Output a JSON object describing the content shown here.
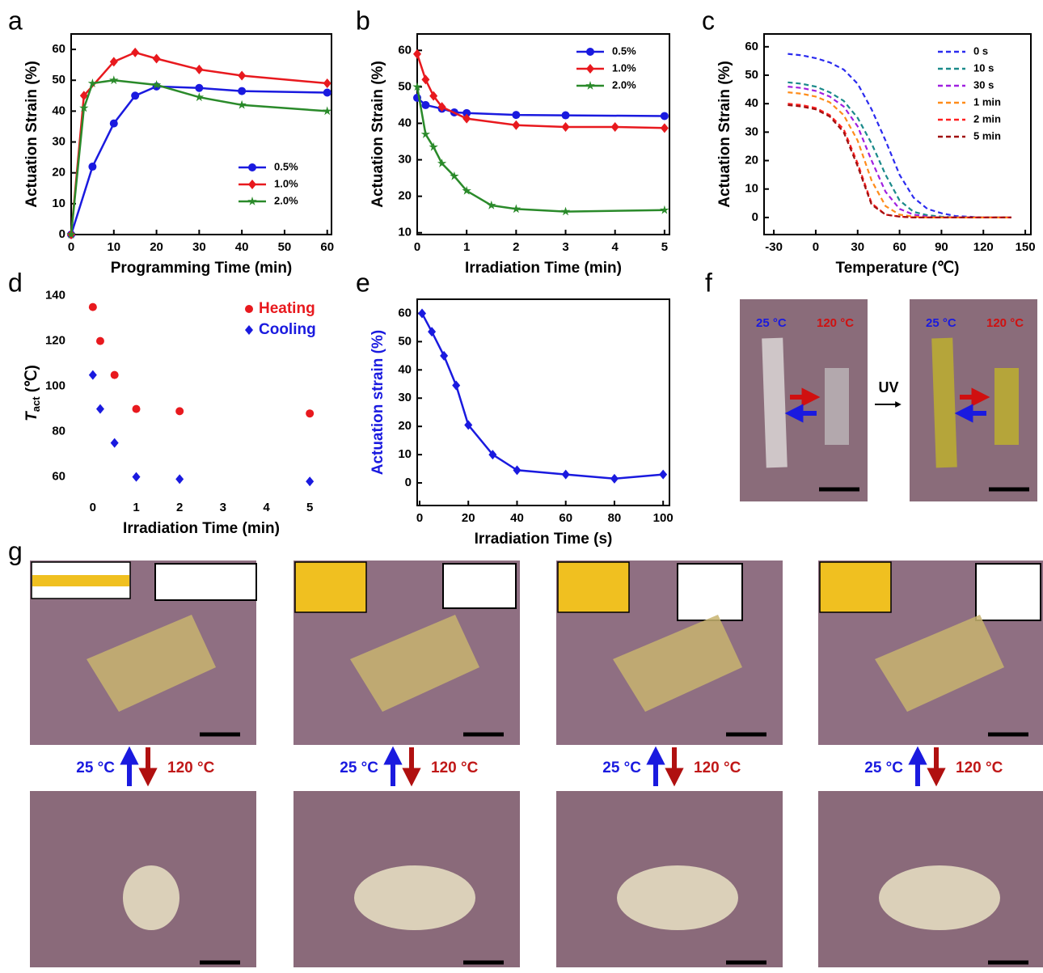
{
  "panel_labels": [
    "a",
    "b",
    "c",
    "d",
    "e",
    "f",
    "g"
  ],
  "chart_data": [
    {
      "type": "line",
      "frame": true,
      "x_label": "Programming Time (min)",
      "y_label": "Actuation Strain (%)",
      "xlim": [
        0,
        61
      ],
      "ylim": [
        0,
        65
      ],
      "xticks": [
        0,
        10,
        20,
        30,
        40,
        50,
        60
      ],
      "yticks": [
        0,
        10,
        20,
        30,
        40,
        50,
        60
      ],
      "legend": "lower right",
      "series": [
        {
          "name": "0.5%",
          "color": "#1a1adf",
          "marker": "circle",
          "x": [
            0,
            5,
            10,
            15,
            20,
            30,
            40,
            60
          ],
          "values": [
            0,
            22,
            36,
            45,
            48,
            47.5,
            46.5,
            46
          ]
        },
        {
          "name": "1.0%",
          "color": "#e8191e",
          "marker": "diamond",
          "x": [
            0,
            3,
            10,
            15,
            20,
            30,
            40,
            60
          ],
          "values": [
            0,
            45,
            56,
            59,
            57,
            53.5,
            51.5,
            49
          ]
        },
        {
          "name": "2.0%",
          "color": "#2a8a2a",
          "marker": "star",
          "x": [
            0,
            3,
            5,
            10,
            20,
            30,
            40,
            60
          ],
          "values": [
            0,
            41,
            49,
            50,
            48.5,
            44.5,
            42,
            40
          ]
        }
      ]
    },
    {
      "type": "line",
      "frame": true,
      "x_label": "Irradiation Time (min)",
      "y_label": "Actuation Strain (%)",
      "xlim": [
        0,
        5.1
      ],
      "ylim": [
        9.5,
        64.5
      ],
      "xticks": [
        0,
        1,
        2,
        3,
        4,
        5
      ],
      "yticks": [
        10,
        20,
        30,
        40,
        50,
        60
      ],
      "legend": "upper right",
      "series": [
        {
          "name": "0.5%",
          "color": "#1a1adf",
          "marker": "circle",
          "x": [
            0,
            0.17,
            0.5,
            0.75,
            1,
            2,
            3,
            5
          ],
          "values": [
            47,
            45,
            44,
            43,
            42.8,
            42.3,
            42.2,
            42
          ]
        },
        {
          "name": "1.0%",
          "color": "#e8191e",
          "marker": "diamond",
          "x": [
            0,
            0.17,
            0.33,
            0.5,
            1,
            2,
            3,
            4,
            5
          ],
          "values": [
            59,
            52,
            47.5,
            44.5,
            41.3,
            39.5,
            39,
            39,
            38.7
          ]
        },
        {
          "name": "2.0%",
          "color": "#2a8a2a",
          "marker": "star",
          "x": [
            0,
            0.17,
            0.33,
            0.5,
            0.75,
            1,
            1.5,
            2,
            3,
            5
          ],
          "values": [
            50,
            37,
            33.5,
            29,
            25.5,
            21.5,
            17.5,
            16.5,
            15.8,
            16.2
          ]
        }
      ]
    },
    {
      "type": "line",
      "frame": true,
      "dashed": true,
      "x_label": "Temperature (℃)",
      "y_label": "Actuation Strain (%)",
      "xlim": [
        -37,
        154
      ],
      "ylim": [
        -6,
        64.5
      ],
      "xticks": [
        -30,
        0,
        30,
        60,
        90,
        120,
        150
      ],
      "yticks": [
        0,
        10,
        20,
        30,
        40,
        50,
        60
      ],
      "legend": "upper right",
      "x": [
        -20,
        -10,
        0,
        10,
        20,
        30,
        40,
        50,
        60,
        70,
        80,
        90,
        100,
        120,
        140
      ],
      "series": [
        {
          "name": "0 s",
          "color": "#2b2bef",
          "values": [
            57.5,
            57,
            56,
            54.5,
            52,
            47,
            38,
            27,
            15,
            7,
            3,
            1.5,
            0.5,
            0,
            0
          ]
        },
        {
          "name": "10 s",
          "color": "#1a8a8a",
          "values": [
            47.5,
            47,
            46,
            44,
            41,
            35,
            26,
            15,
            6,
            2,
            0.8,
            0.3,
            0,
            0,
            0
          ]
        },
        {
          "name": "30 s",
          "color": "#a020e0",
          "values": [
            46,
            45.5,
            44.5,
            42.5,
            39,
            32,
            20,
            9,
            3,
            1,
            0.3,
            0,
            0,
            0,
            0
          ]
        },
        {
          "name": "1 min",
          "color": "#ff8c1a",
          "values": [
            44,
            43.5,
            42.5,
            40.5,
            36,
            27,
            13,
            4,
            1,
            0.3,
            0,
            0,
            0,
            0,
            0
          ]
        },
        {
          "name": "2 min",
          "color": "#ff2020",
          "values": [
            40,
            39.5,
            38.5,
            36,
            31,
            19,
            5,
            1,
            0.3,
            0,
            0,
            0,
            0,
            0,
            0
          ]
        },
        {
          "name": "5 min",
          "color": "#a01010",
          "values": [
            39.5,
            39,
            38,
            35.5,
            30,
            18,
            4.5,
            1,
            0.3,
            0,
            0,
            0,
            0,
            0,
            0
          ]
        }
      ]
    },
    {
      "type": "scatter",
      "frame": false,
      "x_label": "Irradiation Time (min)",
      "y_label": "T",
      "y_label_sub": "act",
      "y_label_unit": " (℃)",
      "xlim": [
        -0.5,
        5.5
      ],
      "ylim": [
        52,
        142
      ],
      "xticks": [
        0,
        1,
        2,
        3,
        4,
        5
      ],
      "yticks": [
        60,
        80,
        100,
        120,
        140
      ],
      "legend": "upper right",
      "series": [
        {
          "name": "Heating",
          "color": "#e8191e",
          "marker": "circle",
          "x": [
            0,
            0.17,
            0.5,
            1,
            2,
            5
          ],
          "values": [
            135,
            120,
            105,
            90,
            89,
            88
          ]
        },
        {
          "name": "Cooling",
          "color": "#1a1adf",
          "marker": "diamond",
          "x": [
            0,
            0.17,
            0.5,
            1,
            2,
            5
          ],
          "values": [
            105,
            90,
            75,
            60,
            59,
            58
          ]
        }
      ]
    },
    {
      "type": "line",
      "frame": true,
      "x_label": "Irradiation Time (s)",
      "y_label": "Actuation strain (%)",
      "y_label_color": "#1a1adf",
      "xlim": [
        -1,
        102.6
      ],
      "ylim": [
        -8,
        65
      ],
      "xticks": [
        0,
        20,
        40,
        60,
        80,
        100
      ],
      "yticks": [
        0,
        10,
        20,
        30,
        40,
        50,
        60
      ],
      "color": "#1a1adf",
      "marker": "diamond",
      "x": [
        1,
        5,
        10,
        15,
        20,
        30,
        40,
        60,
        80,
        100
      ],
      "values": [
        60,
        53.5,
        45,
        34.5,
        20.5,
        10,
        4.5,
        3,
        1.5,
        3
      ]
    }
  ],
  "photos": {
    "f": {
      "left": {
        "cold": "25 °C",
        "hot": "120 °C"
      },
      "arrow": "UV",
      "right": {
        "cold": "25 °C",
        "hot": "120 °C"
      }
    },
    "g": [
      {
        "cold": "25 °C",
        "hot": "120 °C"
      },
      {
        "cold": "25 °C",
        "hot": "120 °C"
      },
      {
        "cold": "25 °C",
        "hot": "120 °C"
      },
      {
        "cold": "25 °C",
        "hot": "120 °C"
      }
    ]
  }
}
